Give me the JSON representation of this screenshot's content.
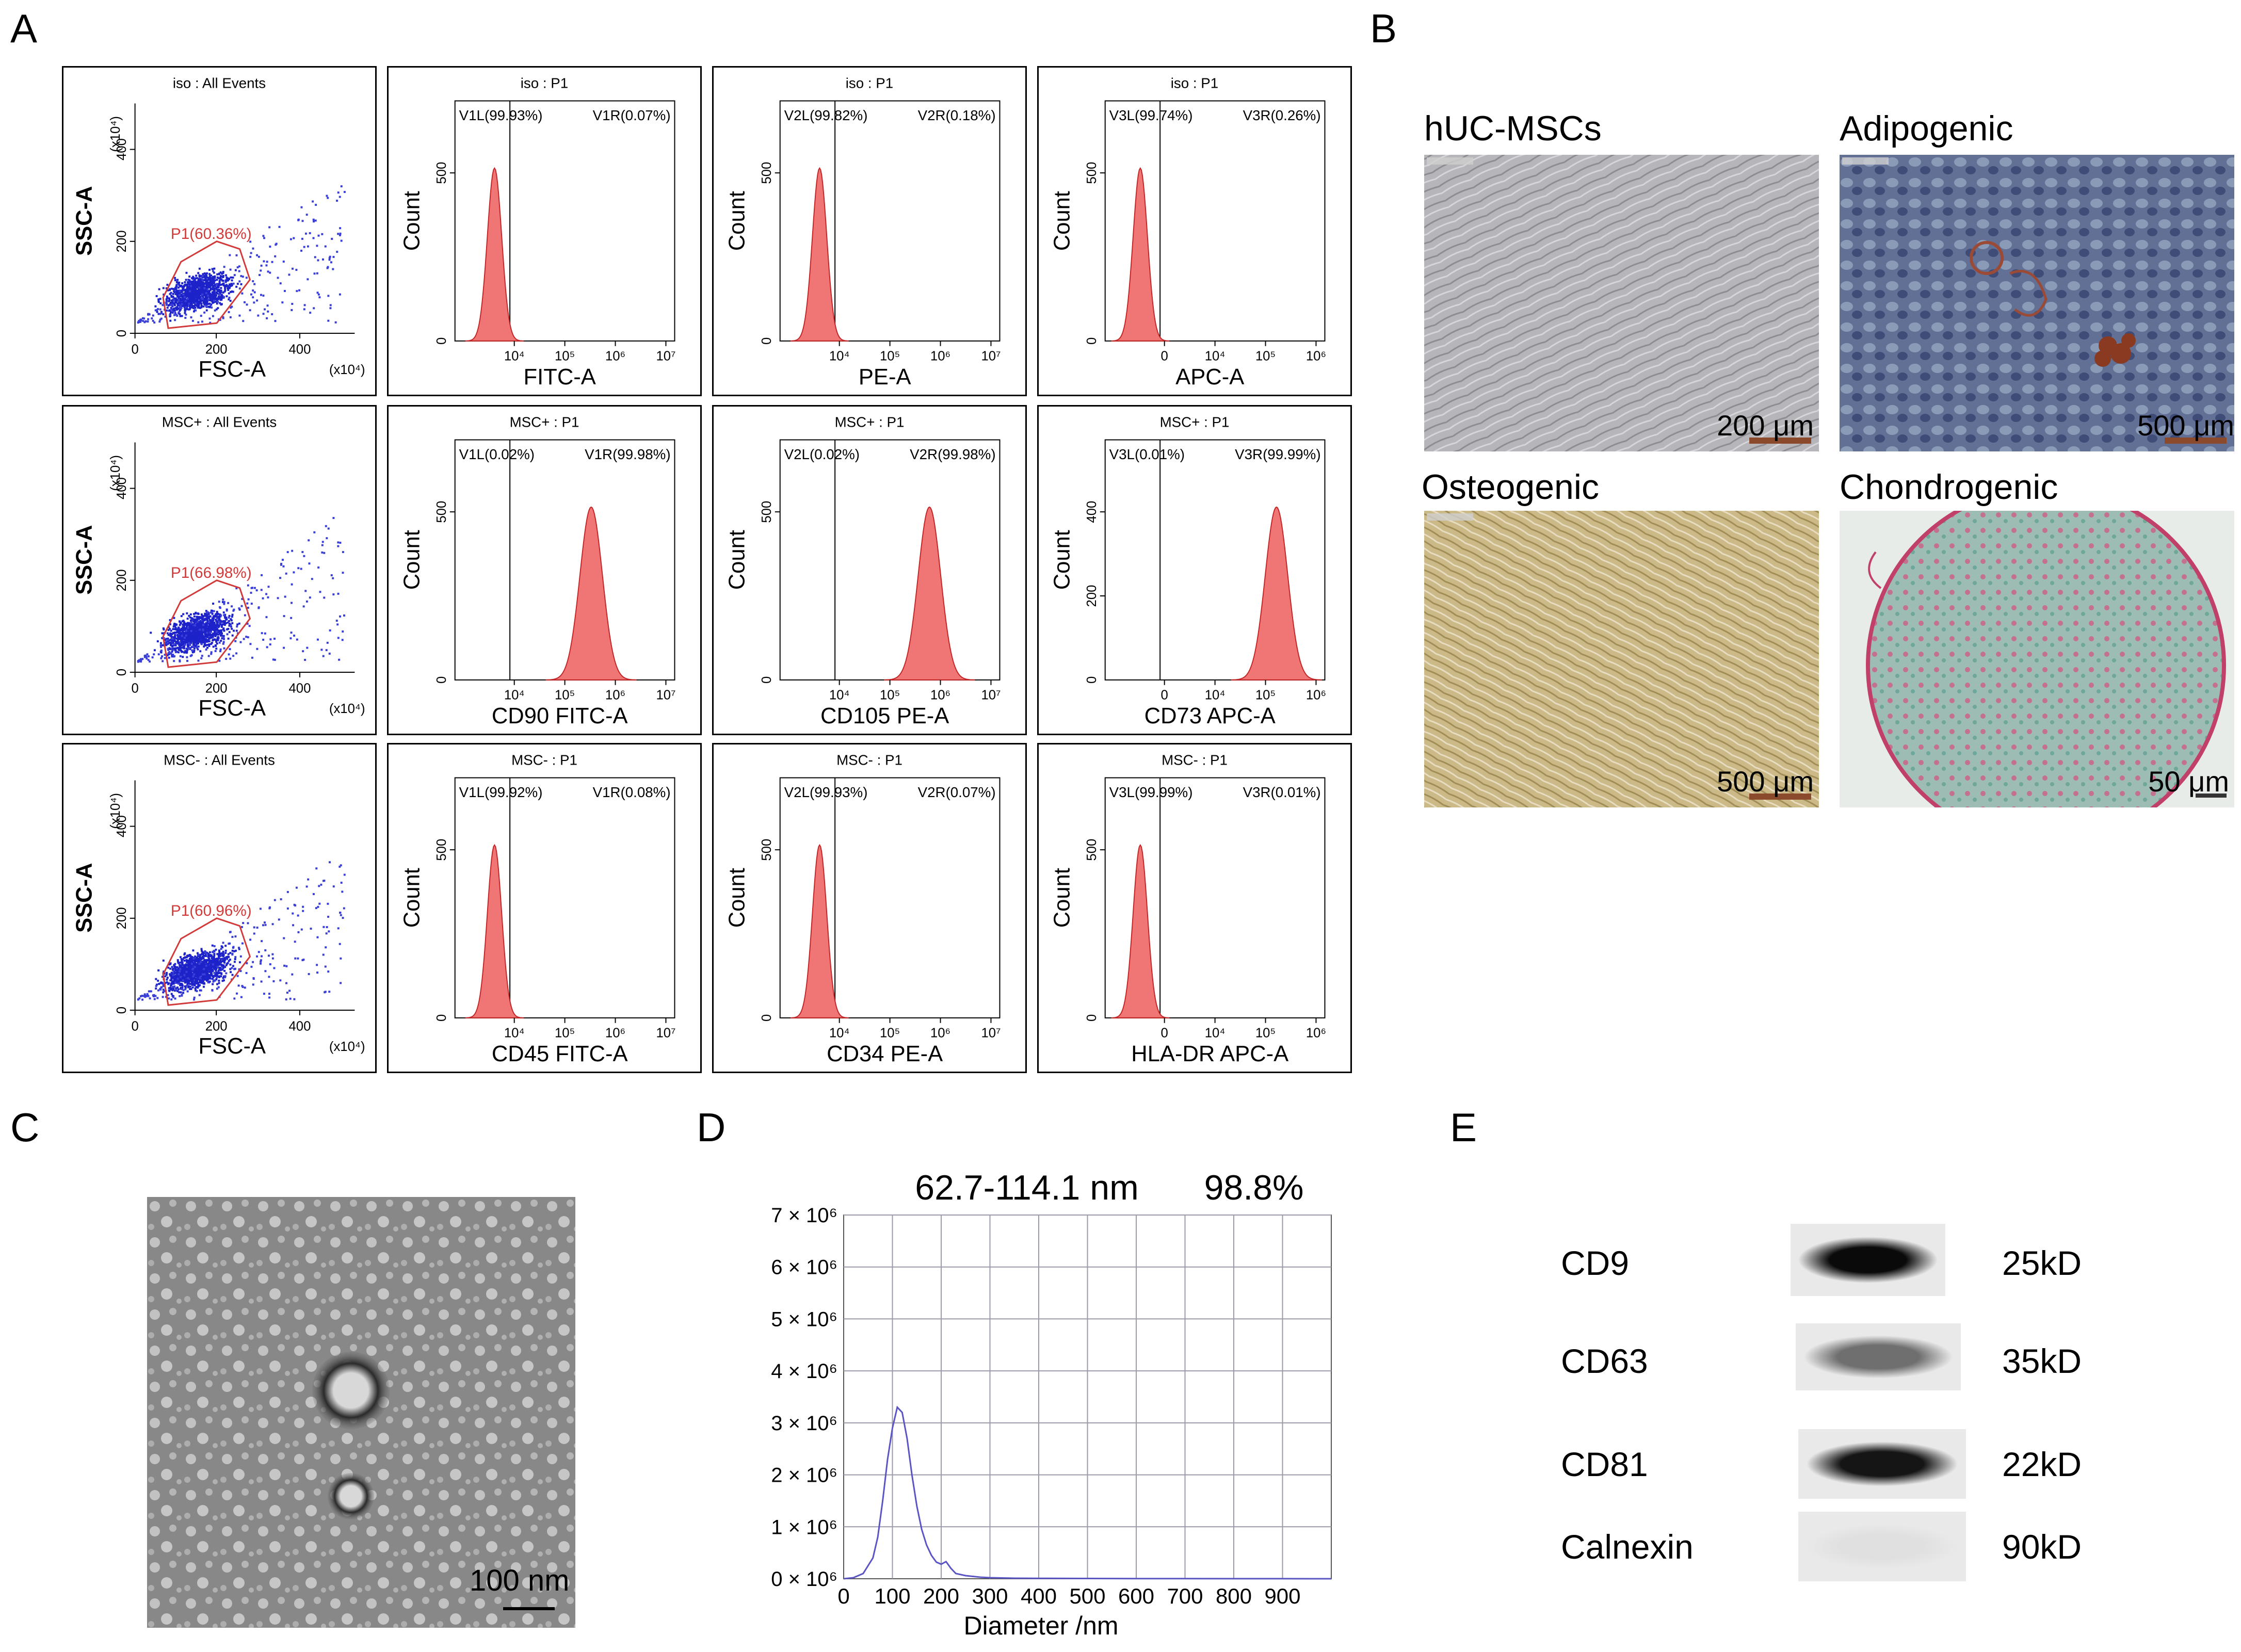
{
  "panels": [
    "A",
    "B",
    "C",
    "D",
    "E"
  ],
  "panel_a": {
    "rows": [
      {
        "scatter": {
          "title": "iso : All Events",
          "gate": "P1(60.36%)",
          "xlabel": "FSC-A",
          "ylabel": "SSC-A",
          "xticks": [
            "0",
            "200",
            "400"
          ],
          "yticks": [
            "0",
            "200",
            "400"
          ],
          "xunit": "(x10⁴)",
          "yunit": "(x10⁴)"
        },
        "hists": [
          {
            "title": "iso : P1",
            "left": "V1L(99.93%)",
            "right": "V1R(0.07%)",
            "xlabel": "FITC-A",
            "ytick": "500",
            "ylabel": "Count",
            "peak": 0.18,
            "xticks": [
              "10⁴",
              "10⁵",
              "10⁶",
              "10⁷"
            ]
          },
          {
            "title": "iso : P1",
            "left": "V2L(99.82%)",
            "right": "V2R(0.18%)",
            "xlabel": "PE-A",
            "ytick": "500",
            "ylabel": "Count",
            "peak": 0.18,
            "xticks": [
              "10⁴",
              "10⁵",
              "10⁶",
              "10⁷"
            ]
          },
          {
            "title": "iso : P1",
            "left": "V3L(99.74%)",
            "right": "V3R(0.26%)",
            "xlabel": "APC-A",
            "ytick": "500",
            "ylabel": "Count",
            "peak": 0.16,
            "xticks": [
              "0",
              "10⁴",
              "10⁵",
              "10⁶"
            ]
          }
        ]
      },
      {
        "scatter": {
          "title": "MSC+ : All Events",
          "gate": "P1(66.98%)",
          "xlabel": "FSC-A",
          "ylabel": "SSC-A",
          "xticks": [
            "0",
            "200",
            "400"
          ],
          "yticks": [
            "0",
            "200",
            "400"
          ],
          "xunit": "(x10⁴)",
          "yunit": "(x10⁴)"
        },
        "hists": [
          {
            "title": "MSC+ : P1",
            "left": "V1L(0.02%)",
            "right": "V1R(99.98%)",
            "xlabel": "CD90 FITC-A",
            "ytick": "500",
            "ylabel": "Count",
            "peak": 0.62,
            "xticks": [
              "10⁴",
              "10⁵",
              "10⁶",
              "10⁷"
            ]
          },
          {
            "title": "MSC+ : P1",
            "left": "V2L(0.02%)",
            "right": "V2R(99.98%)",
            "xlabel": "CD105 PE-A",
            "ytick": "500",
            "ylabel": "Count",
            "peak": 0.68,
            "xticks": [
              "10⁴",
              "10⁵",
              "10⁶",
              "10⁷"
            ]
          },
          {
            "title": "MSC+ : P1",
            "left": "V3L(0.01%)",
            "right": "V3R(99.99%)",
            "xlabel": "CD73 APC-A",
            "ytick": "400",
            "ytick2": "200",
            "ylabel": "Count",
            "peak": 0.78,
            "xticks": [
              "0",
              "10⁴",
              "10⁵",
              "10⁶"
            ]
          }
        ]
      },
      {
        "scatter": {
          "title": "MSC- : All Events",
          "gate": "P1(60.96%)",
          "xlabel": "FSC-A",
          "ylabel": "SSC-A",
          "xticks": [
            "0",
            "200",
            "400"
          ],
          "yticks": [
            "0",
            "200",
            "400"
          ],
          "xunit": "(x10⁴)",
          "yunit": "(x10⁴)"
        },
        "hists": [
          {
            "title": "MSC- : P1",
            "left": "V1L(99.92%)",
            "right": "V1R(0.08%)",
            "xlabel": "CD45 FITC-A",
            "ytick": "500",
            "ylabel": "Count",
            "peak": 0.18,
            "xticks": [
              "10⁴",
              "10⁵",
              "10⁶",
              "10⁷"
            ]
          },
          {
            "title": "MSC- : P1",
            "left": "V2L(99.93%)",
            "right": "V2R(0.07%)",
            "xlabel": "CD34 PE-A",
            "ytick": "500",
            "ylabel": "Count",
            "peak": 0.18,
            "xticks": [
              "10⁴",
              "10⁵",
              "10⁶",
              "10⁷"
            ]
          },
          {
            "title": "MSC- : P1",
            "left": "V3L(99.99%)",
            "right": "V3R(0.01%)",
            "xlabel": "HLA-DR APC-A",
            "ytick": "500",
            "ylabel": "Count",
            "peak": 0.16,
            "xticks": [
              "0",
              "10⁴",
              "10⁵",
              "10⁶"
            ]
          }
        ]
      }
    ]
  },
  "panel_b": {
    "images": [
      {
        "title": "hUC-MSCs",
        "scale": "200 μm"
      },
      {
        "title": "Adipogenic",
        "scale": "500 μm"
      },
      {
        "title": "Osteogenic",
        "scale": "500 μm"
      },
      {
        "title": "Chondrogenic",
        "scale": "50 μm"
      }
    ]
  },
  "panel_c": {
    "scale": "100 nm"
  },
  "panel_d": {
    "annotation_range": "62.7-114.1 nm",
    "annotation_pct": "98.8%",
    "xlabel": "Diameter /nm"
  },
  "chart_data": {
    "type": "line",
    "title": "",
    "xlabel": "Diameter /nm",
    "ylabel": "",
    "xlim": [
      0,
      1000
    ],
    "ylim": [
      0,
      7000000
    ],
    "xticks": [
      0,
      100,
      200,
      300,
      400,
      500,
      600,
      700,
      800,
      900
    ],
    "yticks": [
      0,
      1000000,
      2000000,
      3000000,
      4000000,
      5000000,
      6000000,
      7000000
    ],
    "ytick_labels": [
      "0 × 10⁶",
      "1 × 10⁶",
      "2 × 10⁶",
      "3 × 10⁶",
      "4 × 10⁶",
      "5 × 10⁶",
      "6 × 10⁶",
      "7 × 10⁶"
    ],
    "grid": true,
    "series": [
      {
        "x": [
          0,
          20,
          40,
          60,
          70,
          80,
          90,
          100,
          110,
          120,
          130,
          140,
          150,
          160,
          170,
          180,
          190,
          200,
          210,
          220,
          230,
          250,
          280,
          300,
          350,
          400,
          500,
          600,
          700,
          800,
          900,
          1000
        ],
        "y": [
          0,
          20000,
          100000,
          400000,
          800000,
          1500000,
          2300000,
          2900000,
          3300000,
          3200000,
          2700000,
          2000000,
          1400000,
          950000,
          650000,
          450000,
          320000,
          280000,
          330000,
          200000,
          100000,
          60000,
          30000,
          20000,
          10000,
          8000,
          5000,
          3000,
          2000,
          1000,
          500,
          0
        ]
      }
    ]
  },
  "panel_e": {
    "rows": [
      {
        "protein": "CD9",
        "size": "25kD",
        "intensity": 1.0
      },
      {
        "protein": "CD63",
        "size": "35kD",
        "intensity": 0.55
      },
      {
        "protein": "CD81",
        "size": "22kD",
        "intensity": 0.95
      },
      {
        "protein": "Calnexin",
        "size": "90kD",
        "intensity": 0.05
      }
    ]
  }
}
